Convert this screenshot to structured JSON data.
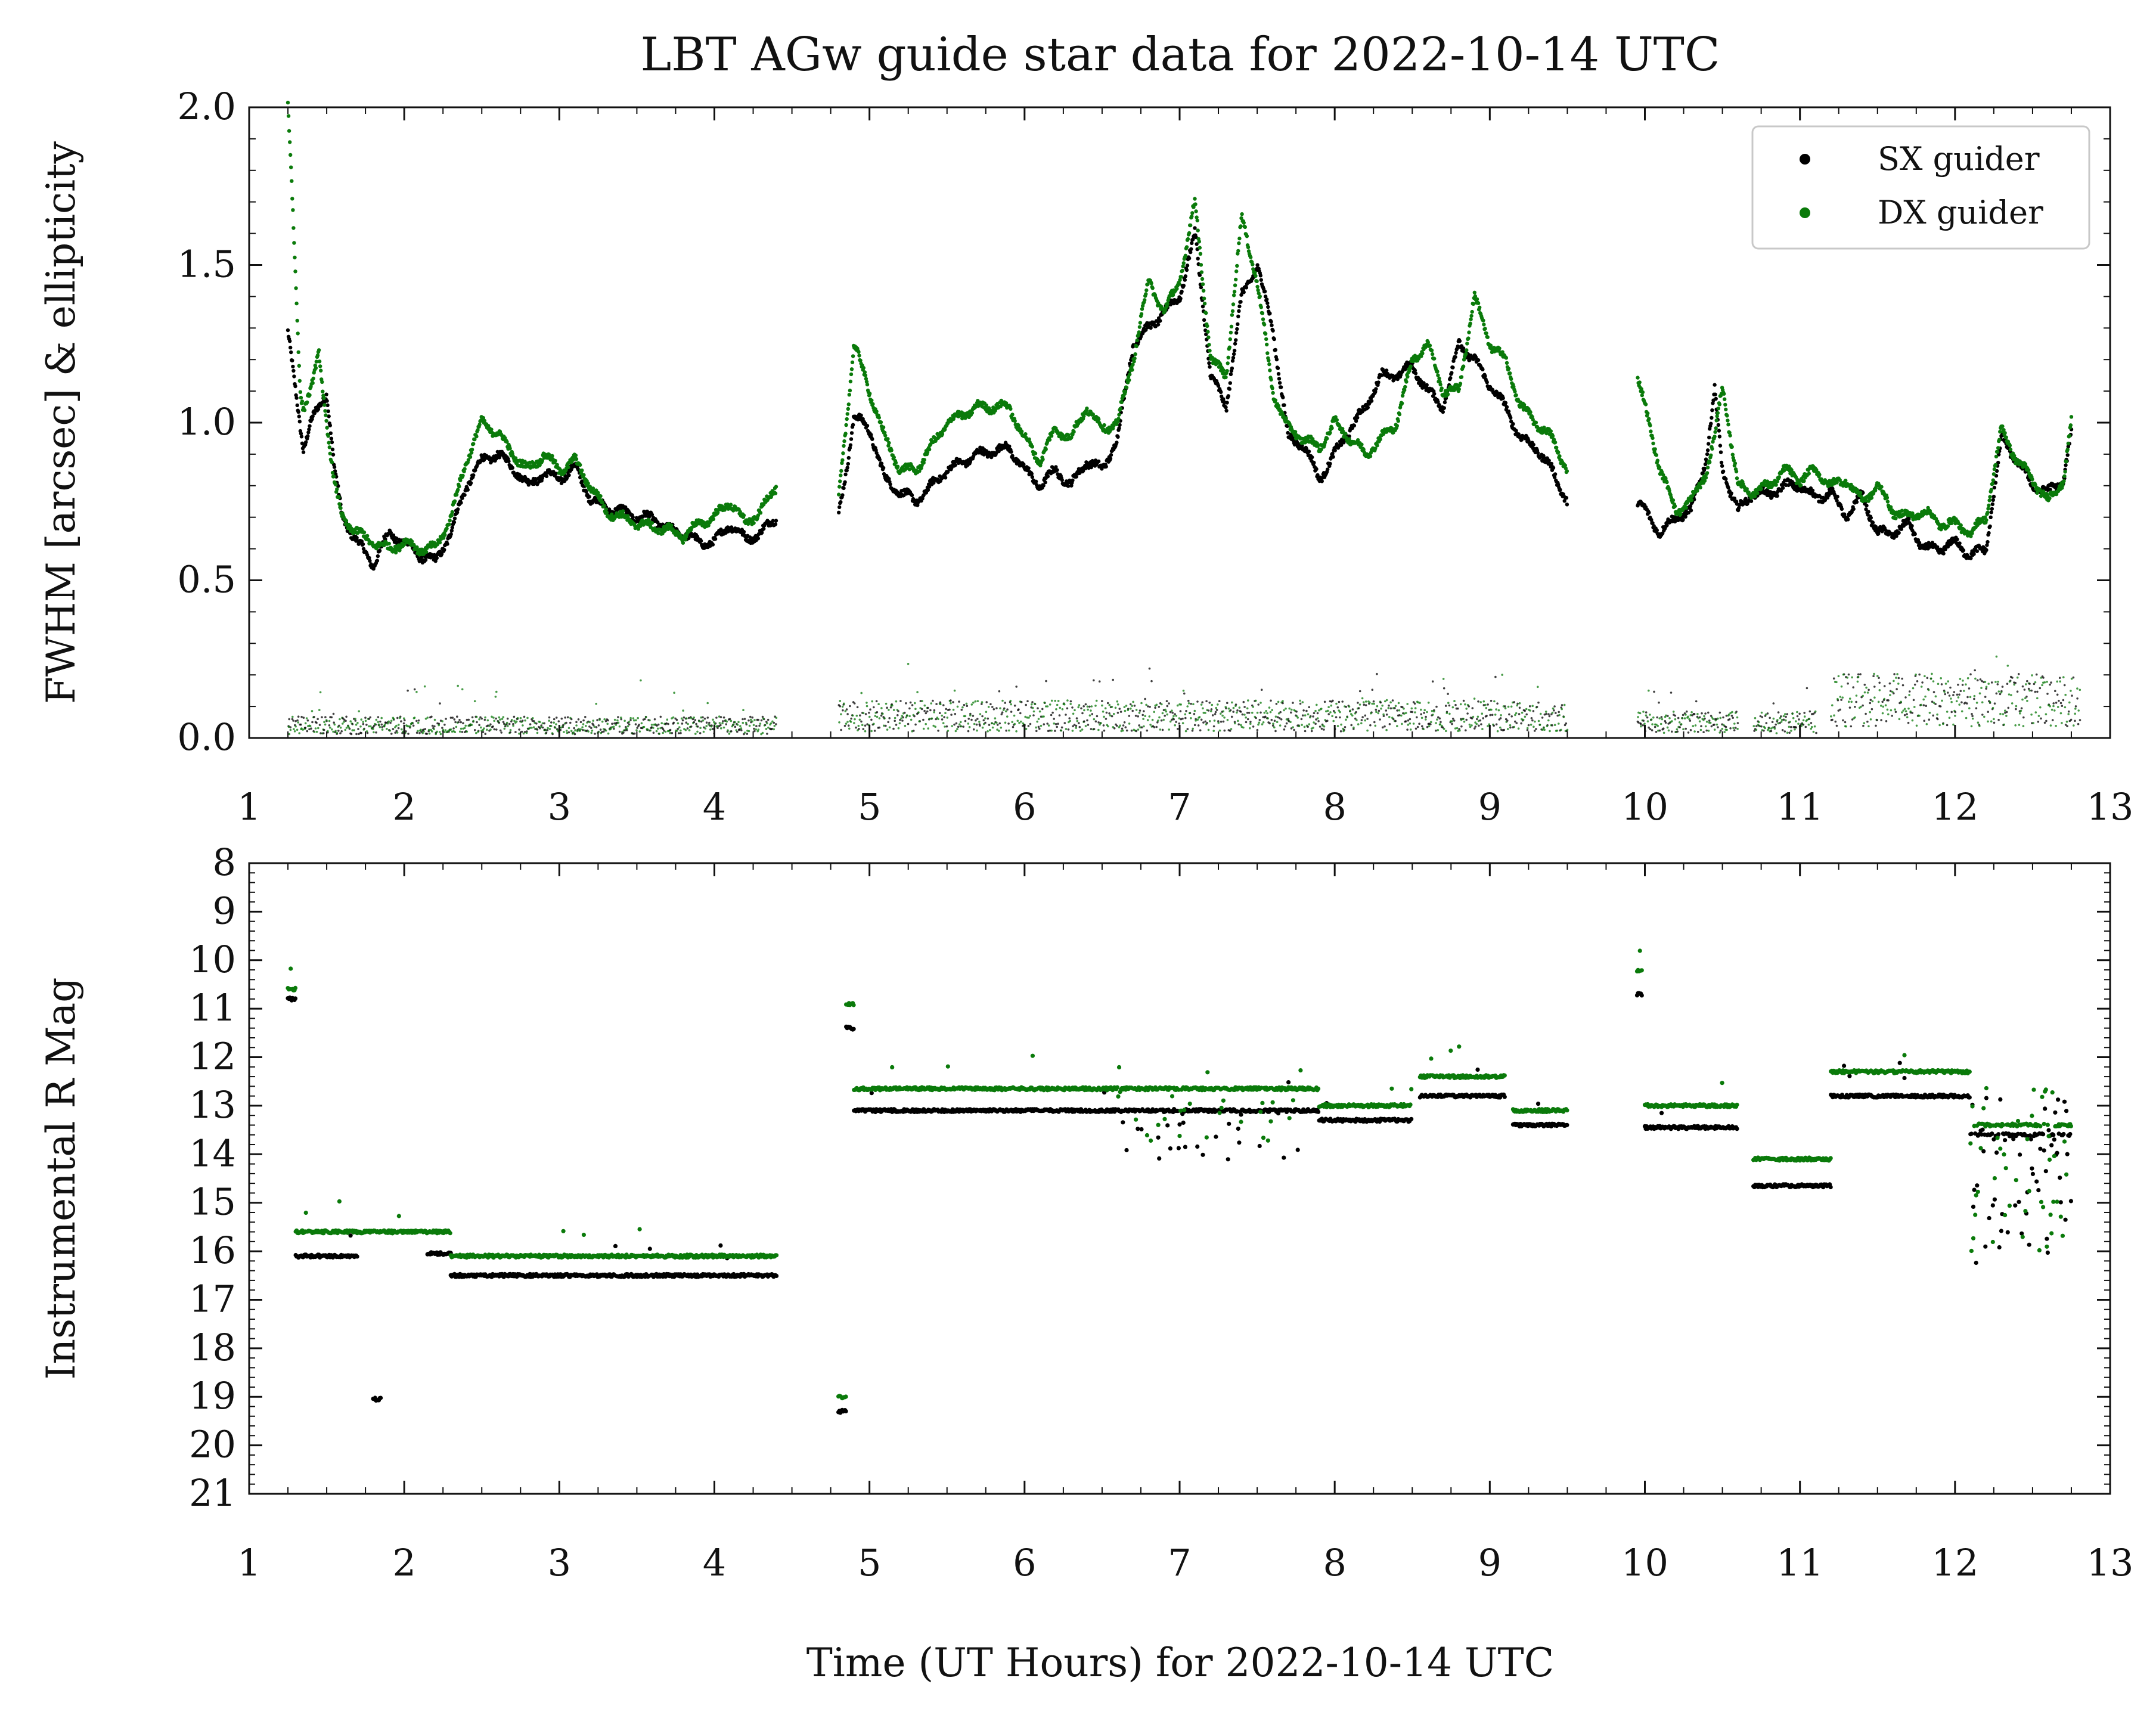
{
  "figure": {
    "title": "LBT AGw guide star data for 2022-10-14 UTC",
    "xlabel": "Time (UT Hours) for 2022-10-14 UTC"
  },
  "colors": {
    "sx": "#000000",
    "dx": "#0a7a0a"
  },
  "chart_data": [
    {
      "type": "scatter",
      "name": "top-panel",
      "title": "LBT AGw guide star data for 2022-10-14 UTC",
      "xlabel": "",
      "ylabel": "FWHM [arcsec] & ellipticity",
      "xlim": [
        1,
        13
      ],
      "ylim": [
        0,
        2.0
      ],
      "xticks": [
        1,
        2,
        3,
        4,
        5,
        6,
        7,
        8,
        9,
        10,
        11,
        12,
        13
      ],
      "yticks": [
        0.0,
        0.5,
        1.0,
        1.5,
        2.0
      ],
      "ytick_labels": [
        "0.0",
        "0.5",
        "1.0",
        "1.5",
        "2.0"
      ],
      "legend": {
        "placement": "top-right",
        "entries": [
          "SX guider",
          "DX guider"
        ]
      },
      "series": [
        {
          "name": "SX guider",
          "x": [
            1.25,
            1.3,
            1.35,
            1.4,
            1.5,
            1.55,
            1.6,
            1.7,
            1.8,
            1.9,
            2.0,
            2.1,
            2.2,
            2.3,
            2.4,
            2.5,
            2.6,
            2.7,
            2.8,
            2.9,
            3.0,
            3.1,
            3.2,
            3.3,
            3.4,
            3.5,
            3.6,
            3.7,
            3.8,
            3.9,
            4.0,
            4.1,
            4.2,
            4.3,
            4.4,
            4.8,
            4.85,
            4.9,
            5.0,
            5.1,
            5.2,
            5.3,
            5.5,
            5.7,
            5.9,
            6.0,
            6.1,
            6.2,
            6.3,
            6.4,
            6.5,
            6.6,
            6.7,
            6.8,
            6.9,
            7.0,
            7.1,
            7.2,
            7.3,
            7.4,
            7.5,
            7.6,
            7.7,
            7.8,
            7.9,
            8.0,
            8.1,
            8.2,
            8.3,
            8.4,
            8.5,
            8.6,
            8.7,
            8.8,
            8.9,
            9.0,
            9.1,
            9.2,
            9.3,
            9.4,
            9.5,
            9.95,
            10.0,
            10.1,
            10.2,
            10.3,
            10.4,
            10.45,
            10.5,
            10.6,
            10.7,
            10.8,
            10.9,
            11.0,
            11.1,
            11.2,
            11.3,
            11.4,
            11.5,
            11.6,
            11.7,
            11.8,
            11.9,
            12.0,
            12.1,
            12.2,
            12.3,
            12.4,
            12.5,
            12.6,
            12.7,
            12.75
          ],
          "y": [
            1.28,
            1.1,
            0.92,
            1.0,
            1.1,
            0.85,
            0.7,
            0.62,
            0.55,
            0.65,
            0.62,
            0.58,
            0.56,
            0.65,
            0.8,
            0.88,
            0.9,
            0.86,
            0.8,
            0.84,
            0.82,
            0.86,
            0.76,
            0.73,
            0.72,
            0.7,
            0.7,
            0.66,
            0.65,
            0.62,
            0.62,
            0.68,
            0.63,
            0.65,
            0.7,
            0.7,
            0.85,
            1.02,
            0.98,
            0.82,
            0.78,
            0.75,
            0.85,
            0.9,
            0.92,
            0.85,
            0.8,
            0.85,
            0.8,
            0.88,
            0.85,
            0.95,
            1.25,
            1.3,
            1.35,
            1.4,
            1.6,
            1.15,
            1.05,
            1.4,
            1.5,
            1.3,
            0.95,
            0.93,
            0.82,
            0.9,
            0.98,
            1.05,
            1.15,
            1.15,
            1.18,
            1.1,
            1.05,
            1.25,
            1.2,
            1.12,
            1.05,
            0.95,
            0.92,
            0.85,
            0.75,
            0.75,
            0.72,
            0.65,
            0.7,
            0.72,
            0.9,
            1.1,
            0.85,
            0.72,
            0.78,
            0.77,
            0.8,
            0.8,
            0.76,
            0.78,
            0.7,
            0.77,
            0.65,
            0.65,
            0.68,
            0.6,
            0.6,
            0.62,
            0.58,
            0.6,
            0.95,
            0.88,
            0.8,
            0.78,
            0.82,
            0.97
          ]
        },
        {
          "name": "DX guider",
          "x": [
            1.25,
            1.27,
            1.3,
            1.33,
            1.35,
            1.4,
            1.45,
            1.5,
            1.55,
            1.6,
            1.7,
            1.8,
            1.9,
            2.0,
            2.1,
            2.2,
            2.3,
            2.4,
            2.5,
            2.6,
            2.7,
            2.8,
            2.9,
            3.0,
            3.1,
            3.2,
            3.3,
            3.4,
            3.5,
            3.6,
            3.7,
            3.8,
            3.9,
            4.0,
            4.1,
            4.2,
            4.3,
            4.4,
            4.8,
            4.85,
            4.9,
            5.0,
            5.1,
            5.2,
            5.3,
            5.5,
            5.7,
            5.9,
            6.0,
            6.1,
            6.2,
            6.3,
            6.4,
            6.5,
            6.6,
            6.7,
            6.8,
            6.9,
            7.0,
            7.1,
            7.2,
            7.3,
            7.4,
            7.5,
            7.6,
            7.7,
            7.8,
            7.9,
            8.0,
            8.1,
            8.2,
            8.3,
            8.4,
            8.5,
            8.6,
            8.7,
            8.8,
            8.9,
            9.0,
            9.1,
            9.2,
            9.3,
            9.4,
            9.5,
            9.95,
            10.0,
            10.1,
            10.2,
            10.3,
            10.4,
            10.45,
            10.5,
            10.6,
            10.7,
            10.8,
            10.9,
            11.0,
            11.1,
            11.2,
            11.3,
            11.4,
            11.5,
            11.6,
            11.7,
            11.8,
            11.9,
            12.0,
            12.1,
            12.2,
            12.3,
            12.4,
            12.5,
            12.6,
            12.7,
            12.75
          ],
          "y": [
            2.0,
            1.8,
            1.45,
            1.1,
            1.05,
            1.1,
            1.22,
            1.0,
            0.8,
            0.7,
            0.65,
            0.62,
            0.6,
            0.62,
            0.6,
            0.6,
            0.7,
            0.88,
            1.0,
            0.97,
            0.9,
            0.85,
            0.9,
            0.85,
            0.88,
            0.8,
            0.72,
            0.7,
            0.68,
            0.67,
            0.66,
            0.64,
            0.68,
            0.7,
            0.75,
            0.68,
            0.72,
            0.8,
            0.75,
            1.0,
            1.25,
            1.1,
            0.95,
            0.85,
            0.85,
            1.0,
            1.05,
            1.05,
            0.95,
            0.88,
            0.98,
            0.95,
            1.05,
            0.98,
            1.0,
            1.2,
            1.45,
            1.35,
            1.45,
            1.7,
            1.2,
            1.15,
            1.65,
            1.45,
            1.1,
            0.98,
            0.95,
            0.92,
            1.0,
            0.95,
            0.9,
            0.95,
            1.0,
            1.2,
            1.25,
            1.1,
            1.1,
            1.4,
            1.25,
            1.2,
            1.05,
            1.0,
            0.95,
            0.85,
            1.15,
            1.05,
            0.85,
            0.72,
            0.75,
            0.85,
            0.95,
            1.12,
            0.8,
            0.78,
            0.8,
            0.85,
            0.82,
            0.85,
            0.8,
            0.82,
            0.75,
            0.8,
            0.72,
            0.7,
            0.72,
            0.68,
            0.68,
            0.65,
            0.7,
            0.98,
            0.88,
            0.82,
            0.75,
            0.82,
            1.0
          ]
        },
        {
          "name": "",
          "kind": "ellipticity-scatter",
          "segments": [
            [
              1.25,
              4.4
            ],
            [
              4.8,
              9.5
            ],
            [
              9.95,
              10.6
            ],
            [
              10.7,
              11.1
            ],
            [
              11.2,
              12.8
            ]
          ],
          "typical_values": {
            "1.25-4.4": 0.03,
            "4.8-9.5": 0.07,
            "9.95-11.1": 0.05,
            "11.2-12.8": 0.12
          }
        }
      ]
    },
    {
      "type": "scatter",
      "name": "bottom-panel",
      "xlabel": "Time (UT Hours) for 2022-10-14 UTC",
      "ylabel": "Instrumental R Mag",
      "xlim": [
        1,
        13
      ],
      "ylim": [
        21,
        8
      ],
      "y_inverted": true,
      "xticks": [
        1,
        2,
        3,
        4,
        5,
        6,
        7,
        8,
        9,
        10,
        11,
        12,
        13
      ],
      "yticks": [
        8,
        9,
        10,
        11,
        12,
        13,
        14,
        15,
        16,
        17,
        18,
        19,
        20,
        21
      ],
      "series": [
        {
          "name": "SX guider",
          "segments": [
            {
              "x": [
                1.25,
                1.3
              ],
              "y": 10.8
            },
            {
              "x": [
                1.3,
                1.7
              ],
              "y": 16.1
            },
            {
              "x": [
                1.8,
                1.85
              ],
              "y": 19.05
            },
            {
              "x": [
                2.15,
                2.3
              ],
              "y": 16.05
            },
            {
              "x": [
                2.3,
                4.4
              ],
              "y": 16.5
            },
            {
              "x": [
                4.8,
                4.85
              ],
              "y": 19.3
            },
            {
              "x": [
                4.85,
                4.9
              ],
              "y": 11.4
            },
            {
              "x": [
                4.9,
                7.9
              ],
              "y": 13.1
            },
            {
              "x": [
                7.9,
                8.5
              ],
              "y": 13.3
            },
            {
              "x": [
                8.55,
                9.1
              ],
              "y": 12.8
            },
            {
              "x": [
                9.15,
                9.5
              ],
              "y": 13.4
            },
            {
              "x": [
                9.95,
                9.98
              ],
              "y": 10.7
            },
            {
              "x": [
                10.0,
                10.6
              ],
              "y": 13.45
            },
            {
              "x": [
                10.7,
                11.2
              ],
              "y": 14.65
            },
            {
              "x": [
                11.2,
                12.1
              ],
              "y": 12.8
            },
            {
              "x": [
                12.1,
                12.75
              ],
              "y": 13.6
            }
          ]
        },
        {
          "name": "DX guider",
          "segments": [
            {
              "x": [
                1.25,
                1.3
              ],
              "y": 10.6
            },
            {
              "x": [
                1.3,
                2.3
              ],
              "y": 15.6
            },
            {
              "x": [
                2.3,
                4.4
              ],
              "y": 16.1
            },
            {
              "x": [
                4.8,
                4.85
              ],
              "y": 19.0
            },
            {
              "x": [
                4.85,
                4.9
              ],
              "y": 10.9
            },
            {
              "x": [
                4.9,
                7.9
              ],
              "y": 12.65
            },
            {
              "x": [
                7.9,
                8.5
              ],
              "y": 13.0
            },
            {
              "x": [
                8.55,
                9.1
              ],
              "y": 12.4
            },
            {
              "x": [
                9.15,
                9.5
              ],
              "y": 13.1
            },
            {
              "x": [
                9.95,
                9.98
              ],
              "y": 10.2
            },
            {
              "x": [
                10.0,
                10.6
              ],
              "y": 13.0
            },
            {
              "x": [
                10.7,
                11.2
              ],
              "y": 14.1
            },
            {
              "x": [
                11.2,
                12.1
              ],
              "y": 12.3
            },
            {
              "x": [
                12.1,
                12.75
              ],
              "y": 13.4
            }
          ]
        }
      ]
    }
  ]
}
